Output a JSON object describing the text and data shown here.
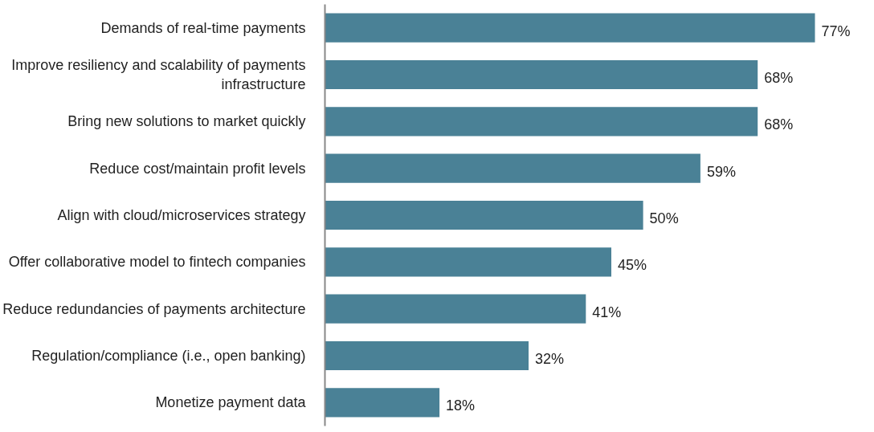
{
  "chart_data": {
    "type": "bar",
    "orientation": "horizontal",
    "categories": [
      "Demands of real-time payments",
      "Improve resiliency and scalability of payments infrastructure",
      "Bring new solutions to market quickly",
      "Reduce cost/maintain profit levels",
      "Align with cloud/microservices strategy",
      "Offer collaborative model to fintech companies",
      "Reduce redundancies of payments architecture",
      "Regulation/compliance (i.e., open banking)",
      "Monetize payment data"
    ],
    "values": [
      77,
      68,
      68,
      59,
      50,
      45,
      41,
      32,
      18
    ],
    "value_labels": [
      "77%",
      "68%",
      "68%",
      "59%",
      "50%",
      "45%",
      "41%",
      "32%",
      "18%"
    ],
    "color": "#4a8196"
  }
}
